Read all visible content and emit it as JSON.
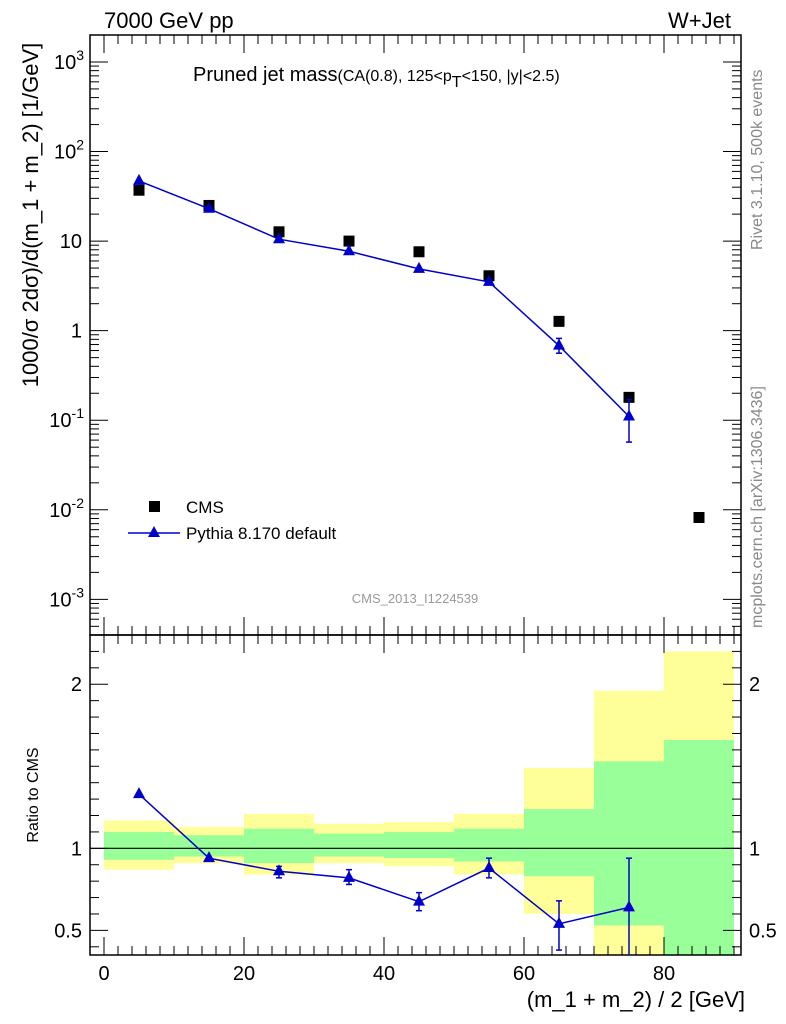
{
  "header": {
    "left": "7000 GeV pp",
    "right": "W+Jet"
  },
  "side_labels": {
    "rivet": "Rivet 3.1.10,  500k events",
    "mcplots": "mcplots.cern.ch [arXiv:1306.3436]"
  },
  "plot_title": {
    "main": "Pruned jet mass",
    "sub": "(CA(0.8), 125<p",
    "sub_subscript": "T",
    "sub_rest": "<150, |y|<2.5)"
  },
  "watermark": "CMS_2013_I1224539",
  "legend": {
    "data_label": "CMS",
    "mc_label": "Pythia 8.170 default"
  },
  "colors": {
    "mc": "#0000cc",
    "data": "#000000",
    "band_outer": "#ffff99",
    "band_inner": "#99ff99"
  },
  "chart_data": [
    {
      "type": "scatter",
      "panel": "main",
      "ylabel": "1000/σ 2dσ)/d(m_1 + m_2) [1/GeV]",
      "yscale": "log",
      "ylim": [
        0.0004,
        2000
      ],
      "xlim": [
        -2,
        91
      ],
      "y_tick_labels": [
        "10^-3",
        "10^-2",
        "10^-1",
        "1",
        "10",
        "10^2",
        "10^3"
      ],
      "series": [
        {
          "name": "CMS",
          "x": [
            5,
            15,
            25,
            35,
            45,
            55,
            65,
            75,
            85
          ],
          "values": [
            37,
            25,
            12.7,
            10,
            7.6,
            4.1,
            1.27,
            0.18,
            0.0082
          ]
        },
        {
          "name": "Pythia 8.170 default",
          "x": [
            5,
            15,
            25,
            35,
            45,
            55,
            65,
            75
          ],
          "values": [
            47,
            23,
            10.5,
            7.7,
            4.9,
            3.5,
            0.68,
            0.11
          ],
          "err_lo": [
            0,
            0,
            0,
            0,
            0,
            0,
            0.56,
            0.057
          ],
          "err_hi": [
            0,
            0,
            0,
            0,
            0,
            0,
            0.82,
            0.17
          ]
        }
      ]
    },
    {
      "type": "line",
      "panel": "ratio",
      "ylabel": "Ratio to CMS",
      "xlabel": "(m_1 + m_2) / 2 [GeV]",
      "ylim": [
        0.35,
        2.3
      ],
      "xlim": [
        -2,
        91
      ],
      "y_tick_labels": [
        "0.5",
        "1",
        "2"
      ],
      "x_tick_labels": [
        "0",
        "20",
        "40",
        "60",
        "80"
      ],
      "bands": {
        "bin_edges": [
          0,
          10,
          20,
          30,
          40,
          50,
          60,
          70,
          80,
          90
        ],
        "outer_lo": [
          0.87,
          0.91,
          0.84,
          0.91,
          0.89,
          0.84,
          0.6,
          0.35,
          0.35
        ],
        "outer_hi": [
          1.17,
          1.13,
          1.21,
          1.15,
          1.16,
          1.21,
          1.49,
          1.96,
          2.2
        ],
        "inner_lo": [
          0.93,
          0.95,
          0.91,
          0.95,
          0.94,
          0.92,
          0.83,
          0.53,
          0.35
        ],
        "inner_hi": [
          1.1,
          1.08,
          1.12,
          1.09,
          1.1,
          1.12,
          1.24,
          1.53,
          1.66
        ]
      },
      "series": [
        {
          "name": "Pythia 8.170 default",
          "x": [
            5,
            15,
            25,
            35,
            45,
            55,
            65,
            75
          ],
          "values": [
            1.33,
            0.94,
            0.86,
            0.82,
            0.675,
            0.88,
            0.54,
            0.64
          ],
          "err_lo": [
            1.33,
            0.94,
            0.82,
            0.78,
            0.62,
            0.82,
            0.38,
            0.35
          ],
          "err_hi": [
            1.33,
            0.94,
            0.89,
            0.87,
            0.73,
            0.94,
            0.68,
            0.94
          ]
        }
      ]
    }
  ]
}
